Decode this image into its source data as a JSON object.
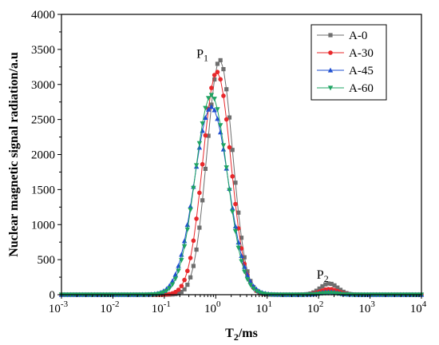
{
  "chart_data": {
    "type": "line",
    "title": "",
    "ylabel": "Nuclear magnetic signal radiation/a.u",
    "xlabel": {
      "main": "T",
      "sub": "2",
      "rest": "/ms"
    },
    "x_scale": "log",
    "xlim": [
      0.001,
      10000
    ],
    "ylim": [
      0,
      4000
    ],
    "x_ticks": [
      {
        "base": "10",
        "exp": "-3",
        "value": 0.001
      },
      {
        "base": "10",
        "exp": "-2",
        "value": 0.01
      },
      {
        "base": "10",
        "exp": "-1",
        "value": 0.1
      },
      {
        "base": "10",
        "exp": "0",
        "value": 1
      },
      {
        "base": "10",
        "exp": "1",
        "value": 10
      },
      {
        "base": "10",
        "exp": "2",
        "value": 100
      },
      {
        "base": "10",
        "exp": "3",
        "value": 1000
      },
      {
        "base": "10",
        "exp": "4",
        "value": 10000
      }
    ],
    "y_ticks": [
      "0",
      "500",
      "1000",
      "1500",
      "2000",
      "2500",
      "3000",
      "3500",
      "4000"
    ],
    "legend_position": "top-right",
    "annotations": [
      {
        "main": "P",
        "sub": "1",
        "x": 0.55,
        "y": 3380
      },
      {
        "main": "P",
        "sub": "2",
        "x": 120,
        "y": 230
      }
    ],
    "series": [
      {
        "name": "A-0",
        "color": "#6e6e6e",
        "marker": "square",
        "peak1": {
          "amp": 3350,
          "center": 1.2,
          "sigma": 0.25
        },
        "peak2": {
          "amp": 160,
          "center": 160,
          "sigma": 0.17
        }
      },
      {
        "name": "A-30",
        "color": "#e8282b",
        "marker": "circle",
        "peak1": {
          "amp": 3180,
          "center": 1.05,
          "sigma": 0.27
        },
        "peak2": {
          "amp": 80,
          "center": 160,
          "sigma": 0.17
        }
      },
      {
        "name": "A-45",
        "color": "#1f4fd1",
        "marker": "triangle-up",
        "peak1": {
          "amp": 2680,
          "center": 0.82,
          "sigma": 0.33
        },
        "peak2": {
          "amp": 40,
          "center": 160,
          "sigma": 0.17
        }
      },
      {
        "name": "A-60",
        "color": "#1fa463",
        "marker": "triangle-down",
        "peak1": {
          "amp": 2850,
          "center": 0.82,
          "sigma": 0.31
        },
        "peak2": {
          "amp": 25,
          "center": 160,
          "sigma": 0.17
        }
      }
    ]
  }
}
